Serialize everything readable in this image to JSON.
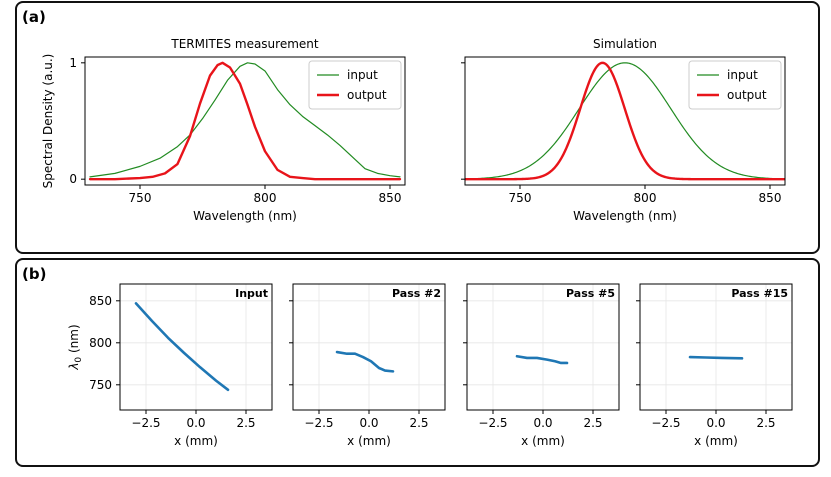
{
  "panel_labels": {
    "a": "(a)",
    "b": "(b)"
  },
  "chart_data": [
    {
      "type": "line",
      "title": "TERMITES measurement",
      "xlabel": "Wavelength (nm)",
      "ylabel": "Spectral Density (a.u.)",
      "xlim": [
        728,
        856
      ],
      "ylim": [
        -0.05,
        1.05
      ],
      "xticks": [
        750,
        800,
        850
      ],
      "yticks": [
        0,
        1
      ],
      "legend_position": "top-right",
      "series": [
        {
          "name": "input",
          "color": "#228b22",
          "x": [
            730,
            740,
            750,
            758,
            765,
            770,
            775,
            780,
            785,
            790,
            793,
            796,
            800,
            805,
            810,
            815,
            820,
            825,
            830,
            835,
            840,
            845,
            850,
            854
          ],
          "y": [
            0.02,
            0.05,
            0.11,
            0.18,
            0.28,
            0.38,
            0.52,
            0.68,
            0.85,
            0.97,
            1.0,
            0.99,
            0.93,
            0.77,
            0.64,
            0.54,
            0.46,
            0.38,
            0.29,
            0.19,
            0.09,
            0.05,
            0.03,
            0.02
          ]
        },
        {
          "name": "output",
          "color": "#e8141a",
          "x": [
            730,
            740,
            750,
            755,
            760,
            765,
            770,
            774,
            778,
            781,
            783,
            786,
            790,
            793,
            796,
            800,
            805,
            810,
            815,
            820,
            830,
            840,
            854
          ],
          "y": [
            0.0,
            0.0,
            0.01,
            0.02,
            0.05,
            0.13,
            0.37,
            0.65,
            0.89,
            0.98,
            1.0,
            0.96,
            0.82,
            0.64,
            0.45,
            0.24,
            0.08,
            0.02,
            0.01,
            0.0,
            0.0,
            0.0,
            0.0
          ]
        }
      ]
    },
    {
      "type": "line",
      "title": "Simulation",
      "xlabel": "Wavelength (nm)",
      "ylabel": "",
      "xlim": [
        728,
        856
      ],
      "ylim": [
        -0.05,
        1.05
      ],
      "xticks": [
        750,
        800,
        850
      ],
      "yticks": [
        0,
        1
      ],
      "show_ytick_labels": false,
      "legend_position": "top-right",
      "series": [
        {
          "name": "input",
          "color": "#228b22",
          "gaussian": {
            "center": 792,
            "sigma": 18.3
          }
        },
        {
          "name": "output",
          "color": "#e8141a",
          "gaussian": {
            "center": 783,
            "sigma": 8.9
          }
        }
      ]
    },
    {
      "type": "line",
      "title": "Input",
      "xlabel": "x (mm)",
      "ylabel": "λ0 (nm)",
      "xlim": [
        -3.8,
        3.8
      ],
      "ylim": [
        720,
        870
      ],
      "xticks": [
        -2.5,
        0.0,
        2.5
      ],
      "xtick_labels": [
        "−2.5",
        "0.0",
        "2.5"
      ],
      "yticks": [
        750,
        800,
        850
      ],
      "grid": true,
      "series": [
        {
          "name": "λ0",
          "color": "#1f77b4",
          "x": [
            -3.0,
            -2.2,
            -1.4,
            -0.6,
            0.2,
            1.0,
            1.6
          ],
          "y": [
            847,
            826,
            806,
            788,
            771,
            755,
            744
          ]
        }
      ]
    },
    {
      "type": "line",
      "title": "Pass #2",
      "xlabel": "x (mm)",
      "xlim": [
        -3.8,
        3.8
      ],
      "ylim": [
        720,
        870
      ],
      "xticks": [
        -2.5,
        0.0,
        2.5
      ],
      "xtick_labels": [
        "−2.5",
        "0.0",
        "2.5"
      ],
      "yticks": [
        750,
        800,
        850
      ],
      "show_ytick_labels": false,
      "grid": true,
      "series": [
        {
          "name": "λ0",
          "color": "#1f77b4",
          "x": [
            -1.6,
            -1.1,
            -0.7,
            -0.3,
            0.1,
            0.5,
            0.8,
            1.2
          ],
          "y": [
            789,
            787,
            787,
            783,
            778,
            770,
            767,
            766
          ]
        }
      ]
    },
    {
      "type": "line",
      "title": "Pass #5",
      "xlabel": "x (mm)",
      "xlim": [
        -3.8,
        3.8
      ],
      "ylim": [
        720,
        870
      ],
      "xticks": [
        -2.5,
        0.0,
        2.5
      ],
      "xtick_labels": [
        "−2.5",
        "0.0",
        "2.5"
      ],
      "yticks": [
        750,
        800,
        850
      ],
      "show_ytick_labels": false,
      "grid": true,
      "series": [
        {
          "name": "λ0",
          "color": "#1f77b4",
          "x": [
            -1.3,
            -0.8,
            -0.3,
            0.2,
            0.6,
            0.9,
            1.2
          ],
          "y": [
            784,
            782,
            782,
            780,
            778,
            776,
            776
          ]
        }
      ]
    },
    {
      "type": "line",
      "title": "Pass #15",
      "xlabel": "x (mm)",
      "xlim": [
        -3.8,
        3.8
      ],
      "ylim": [
        720,
        870
      ],
      "xticks": [
        -2.5,
        0.0,
        2.5
      ],
      "xtick_labels": [
        "−2.5",
        "0.0",
        "2.5"
      ],
      "yticks": [
        750,
        800,
        850
      ],
      "show_ytick_labels": false,
      "grid": true,
      "series": [
        {
          "name": "λ0",
          "color": "#1f77b4",
          "x": [
            -1.3,
            -0.5,
            0.3,
            1.3
          ],
          "y": [
            783,
            782.5,
            782,
            781.5
          ]
        }
      ]
    }
  ]
}
